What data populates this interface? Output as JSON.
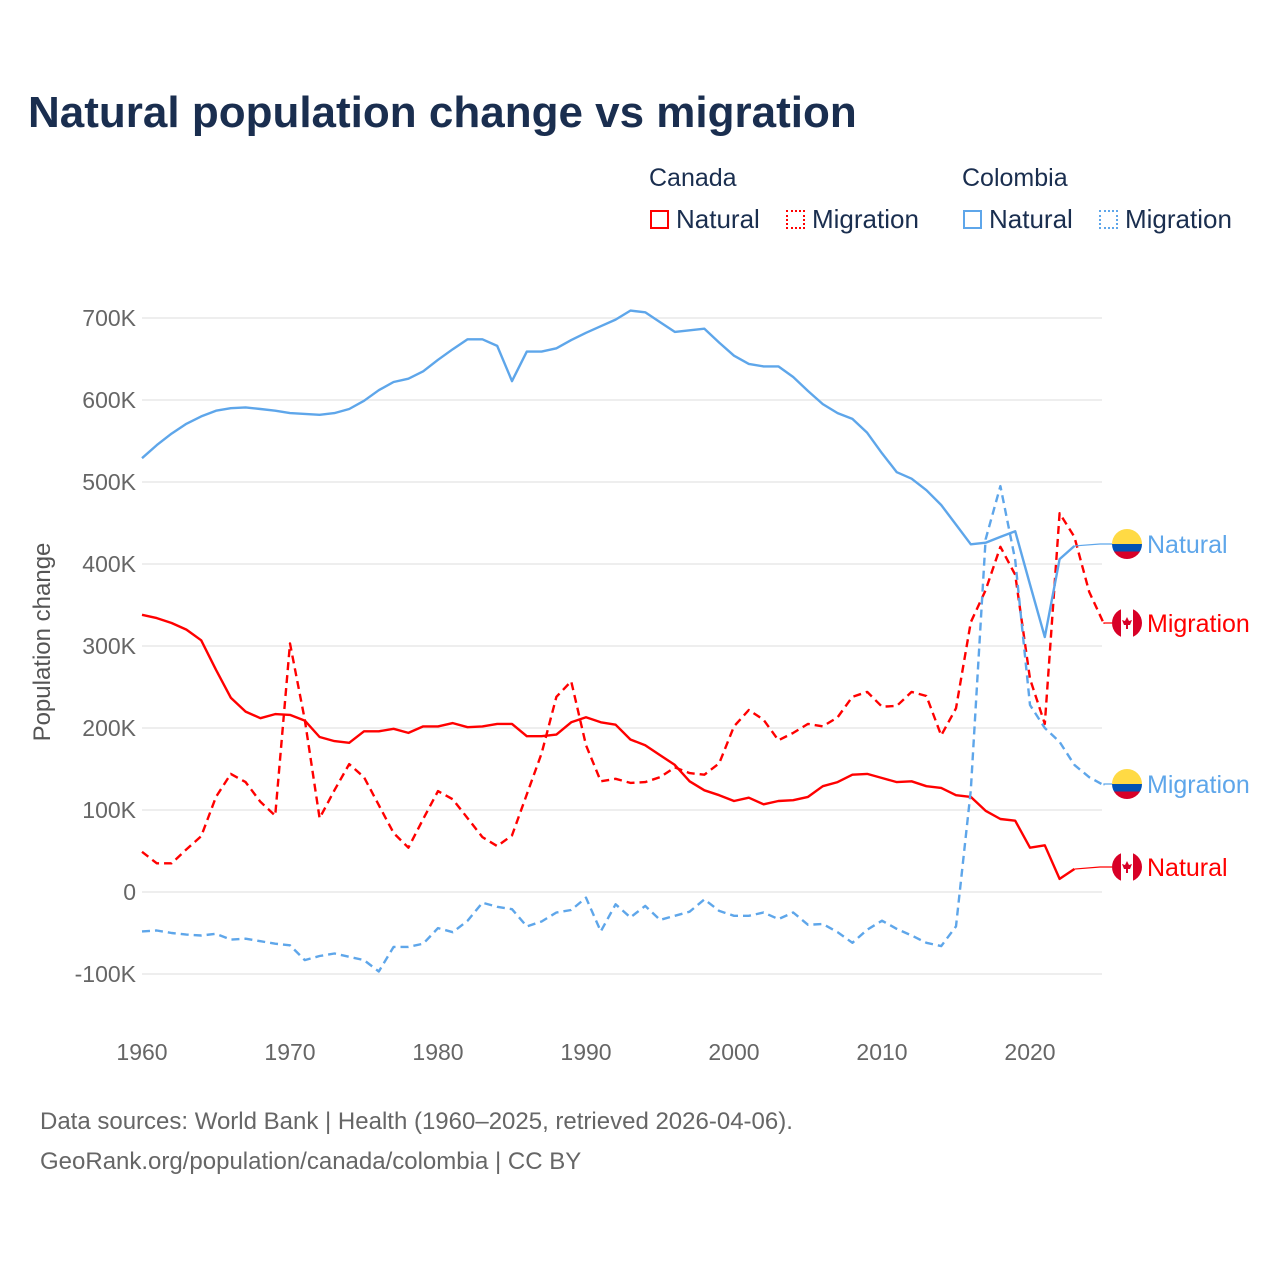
{
  "title": "Natural population change vs migration",
  "legend": {
    "groups": [
      {
        "country": "Canada",
        "items": [
          {
            "label": "Natural",
            "style": "solid",
            "color": "#ff0000"
          },
          {
            "label": "Migration",
            "style": "dotted",
            "color": "#ff0000"
          }
        ]
      },
      {
        "country": "Colombia",
        "items": [
          {
            "label": "Natural",
            "style": "solid",
            "color": "#5ea6ea"
          },
          {
            "label": "Migration",
            "style": "dotted",
            "color": "#5ea6ea"
          }
        ]
      }
    ]
  },
  "footer": {
    "line1": "Data sources: World Bank | Health (1960–2025, retrieved 2026-04-06).",
    "line2": "GeoRank.org/population/canada/colombia | CC BY"
  },
  "chart_data": {
    "type": "line",
    "title": "Natural population change vs migration",
    "xlabel": "",
    "ylabel": "Population change",
    "xlim": [
      1960,
      2025
    ],
    "ylim": [
      -100000,
      700000
    ],
    "x_ticks": [
      "1960",
      "1970",
      "1980",
      "1990",
      "2000",
      "2010",
      "2020"
    ],
    "y_ticks": [
      {
        "value": 700000,
        "label": "700K"
      },
      {
        "value": 600000,
        "label": "600K"
      },
      {
        "value": 500000,
        "label": "500K"
      },
      {
        "value": 400000,
        "label": "400K"
      },
      {
        "value": 300000,
        "label": "300K"
      },
      {
        "value": 200000,
        "label": "200K"
      },
      {
        "value": 100000,
        "label": "100K"
      },
      {
        "value": 0,
        "label": "0"
      },
      {
        "value": -100000,
        "label": "-100K"
      }
    ],
    "grid": true,
    "start_year": 1960,
    "units": "thousands",
    "series": [
      {
        "name": "Canada Natural",
        "country": "Canada",
        "color": "#ff0000",
        "dash": false,
        "end_label": "Natural",
        "values": [
          338,
          334,
          328,
          320,
          307,
          271,
          237,
          220,
          212,
          217,
          216,
          209,
          189,
          184,
          182,
          196,
          196,
          199,
          194,
          202,
          202,
          206,
          201,
          202,
          205,
          205,
          190,
          190,
          192,
          207,
          213,
          207,
          204,
          186,
          179,
          167,
          155,
          135,
          124,
          118,
          111,
          115,
          107,
          111,
          112,
          116,
          129,
          134,
          143,
          144,
          139,
          134,
          135,
          129,
          127,
          118,
          116,
          99,
          89,
          87,
          54,
          57,
          16,
          28,
          null,
          null
        ]
      },
      {
        "name": "Canada Migration",
        "country": "Canada",
        "color": "#ff0000",
        "dash": true,
        "end_label": "Migration",
        "values": [
          49,
          35,
          35,
          52,
          68,
          116,
          144,
          134,
          110,
          93,
          303,
          210,
          90,
          124,
          156,
          140,
          106,
          72,
          54,
          89,
          123,
          113,
          90,
          67,
          56,
          69,
          119,
          169,
          238,
          257,
          179,
          135,
          138,
          133,
          134,
          140,
          152,
          145,
          143,
          157,
          202,
          222,
          210,
          185,
          194,
          205,
          202,
          213,
          238,
          244,
          226,
          227,
          244,
          239,
          191,
          224,
          329,
          368,
          421,
          387,
          260,
          205,
          462,
          433,
          366,
          327
        ]
      },
      {
        "name": "Colombia Natural",
        "country": "Colombia",
        "color": "#5ea6ea",
        "dash": false,
        "end_label": "Natural",
        "values": [
          529,
          545,
          559,
          571,
          580,
          587,
          590,
          591,
          589,
          587,
          584,
          583,
          582,
          584,
          589,
          599,
          612,
          622,
          626,
          635,
          649,
          662,
          674,
          674,
          666,
          623,
          659,
          659,
          663,
          673,
          682,
          690,
          698,
          709,
          707,
          695,
          683,
          685,
          687,
          670,
          654,
          644,
          641,
          641,
          628,
          611,
          595,
          584,
          577,
          560,
          535,
          512,
          504,
          490,
          472,
          448,
          424,
          426,
          433,
          440,
          375,
          311,
          406,
          422,
          null,
          null
        ]
      },
      {
        "name": "Colombia Migration",
        "country": "Colombia",
        "color": "#5ea6ea",
        "dash": true,
        "end_label": "Migration",
        "values": [
          -48,
          -47,
          -50,
          -52,
          -53,
          -51,
          -58,
          -57,
          -60,
          -63,
          -65,
          -83,
          -78,
          -75,
          -79,
          -83,
          -97,
          -67,
          -67,
          -63,
          -44,
          -49,
          -35,
          -13,
          -18,
          -21,
          -42,
          -36,
          -25,
          -22,
          -7,
          -48,
          -15,
          -31,
          -17,
          -34,
          -29,
          -24,
          -9,
          -23,
          -29,
          -29,
          -25,
          -33,
          -25,
          -40,
          -39,
          -49,
          -62,
          -46,
          -35,
          -45,
          -53,
          -62,
          -66,
          -42,
          124,
          430,
          495,
          405,
          228,
          200,
          183,
          155,
          140,
          130
        ]
      }
    ]
  }
}
